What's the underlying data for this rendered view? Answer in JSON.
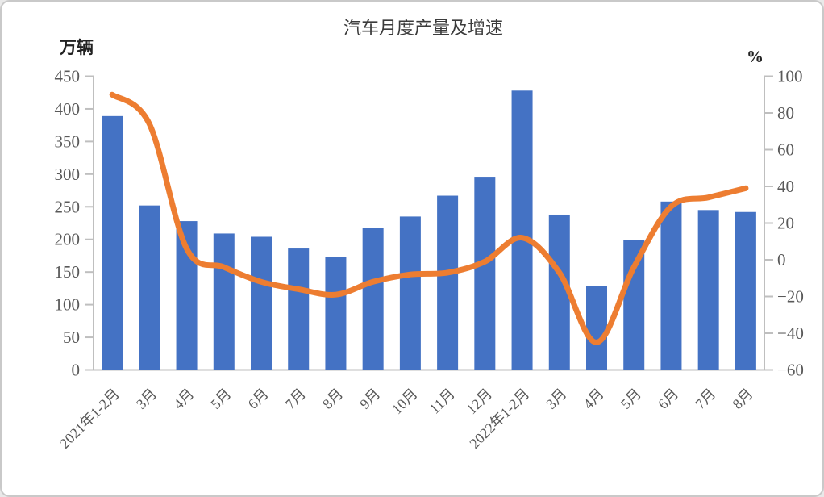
{
  "chart_data": {
    "type": "bar",
    "combo": "bar+line",
    "title": "汽车月度产量及增速",
    "categories": [
      "2021年1-2月",
      "3月",
      "4月",
      "5月",
      "6月",
      "7月",
      "8月",
      "9月",
      "10月",
      "11月",
      "12月",
      "2022年1-2月",
      "3月",
      "4月",
      "5月",
      "6月",
      "7月",
      "8月"
    ],
    "series": [
      {
        "type": "bar",
        "y_axis": "left",
        "color": "#4472C4",
        "values": [
          389,
          252,
          228,
          209,
          204,
          186,
          173,
          218,
          235,
          267,
          296,
          428,
          238,
          128,
          199,
          258,
          245,
          242
        ]
      },
      {
        "type": "line",
        "y_axis": "right",
        "color": "#ED7D31",
        "smooth": true,
        "values": [
          90,
          74,
          6,
          -4,
          -12,
          -16,
          -19,
          -12,
          -8,
          -7,
          -1,
          12,
          -7,
          -45,
          -4,
          29,
          34,
          39
        ]
      }
    ],
    "left_axis": {
      "unit": "万辆",
      "min": 0,
      "max": 450,
      "step": 50
    },
    "right_axis": {
      "unit": "%",
      "min": -60,
      "max": 100,
      "step": 20
    },
    "x_axis": {
      "label_rotation_deg": -45
    },
    "legend": {
      "visible": false
    },
    "grid": false
  },
  "colors": {
    "bar": "#4472C4",
    "line": "#ED7D31",
    "axis_line": "#BFBFBF",
    "tick_text": "#595959",
    "title_text": "#3B3B3B",
    "frame_border": "#C9C9C9",
    "background": "#FFFFFF"
  }
}
